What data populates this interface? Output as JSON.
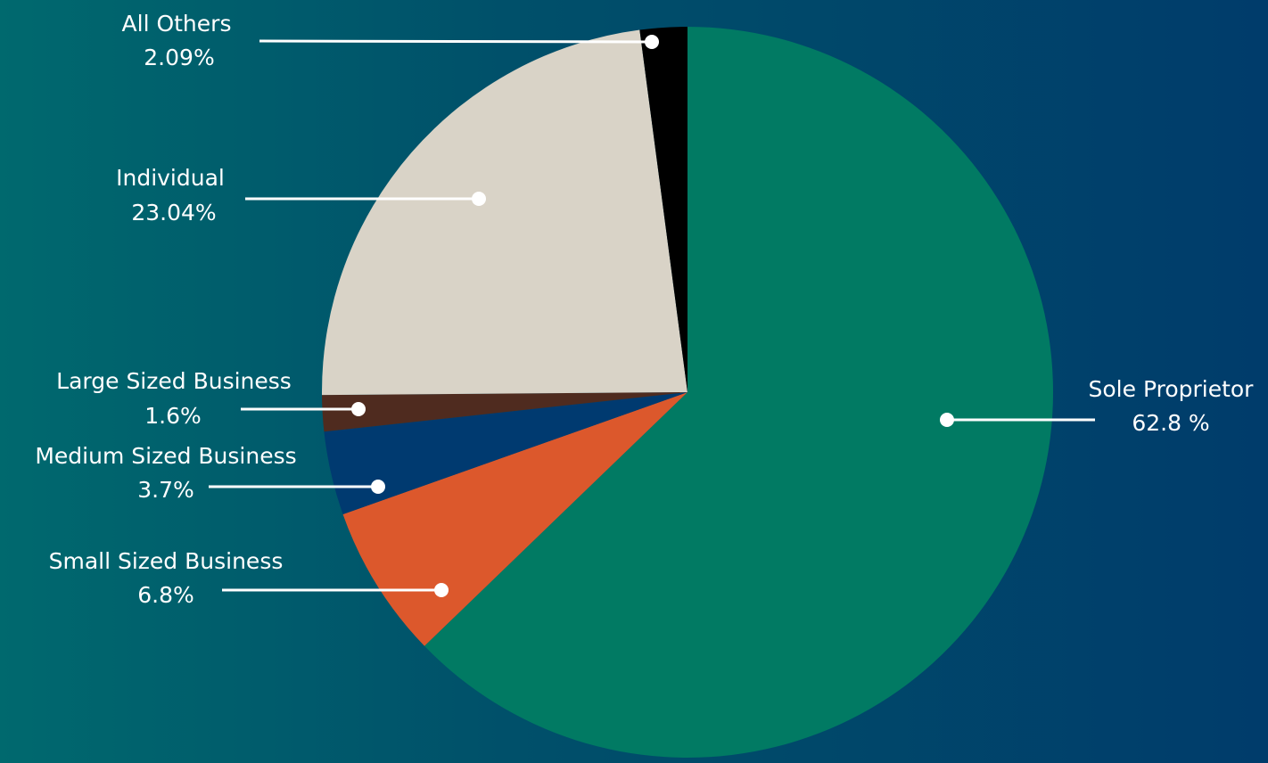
{
  "chart_data": {
    "type": "pie",
    "slices": [
      {
        "name": "Sole Proprietor",
        "value_label": "62.8 %",
        "value": 62.8,
        "color": "#017a63"
      },
      {
        "name": "Small Sized Business",
        "value_label": "6.8%",
        "value": 6.8,
        "color": "#dc582c"
      },
      {
        "name": "Medium Sized Business",
        "value_label": "3.7%",
        "value": 3.7,
        "color": "#003a70"
      },
      {
        "name": "Large Sized Business",
        "value_label": "1.6%",
        "value": 1.6,
        "color": "#4f2b1f"
      },
      {
        "name": "Individual",
        "value_label": "23.04%",
        "value": 23.04,
        "color": "#d9d3c7"
      },
      {
        "name": "All Others",
        "value_label": "2.09%",
        "value": 2.09,
        "color": "#000000"
      }
    ],
    "start_angle": "12 o'clock",
    "direction": "clockwise",
    "legend": "none",
    "label_style": "callout lines with dots"
  }
}
